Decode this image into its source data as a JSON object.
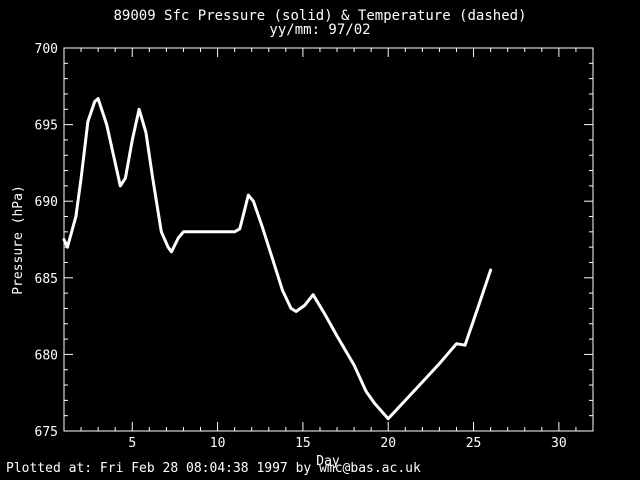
{
  "header": {
    "title_line1": "89009 Sfc Pressure (solid) & Temperature (dashed)",
    "title_line2": "yy/mm: 97/02"
  },
  "footer": {
    "text": "Plotted at: Fri Feb 28 08:04:38 1997 by wmc@bas.ac.uk"
  },
  "chart_data": {
    "type": "line",
    "title": "89009 Sfc Pressure (solid) & Temperature (dashed)",
    "subtitle": "yy/mm: 97/02",
    "xlabel": "Day",
    "ylabel": "Pressure (hPa)",
    "xlim": [
      1,
      32
    ],
    "ylim": [
      675,
      700
    ],
    "x_ticks": [
      5,
      10,
      15,
      20,
      25,
      30
    ],
    "y_ticks": [
      675,
      680,
      685,
      690,
      695,
      700
    ],
    "grid": false,
    "series": [
      {
        "name": "Sfc Pressure",
        "style": "solid",
        "color": "#ffffff",
        "x": [
          1.0,
          1.2,
          1.7,
          2.0,
          2.4,
          2.8,
          3.0,
          3.5,
          4.0,
          4.3,
          4.6,
          5.0,
          5.4,
          5.8,
          6.2,
          6.7,
          7.1,
          7.3,
          7.7,
          8.0,
          8.5,
          9.0,
          10.0,
          10.5,
          11.0,
          11.3,
          11.6,
          11.8,
          12.1,
          12.6,
          13.2,
          13.8,
          14.3,
          14.6,
          15.1,
          15.6,
          16.3,
          17.0,
          18.0,
          18.7,
          19.2,
          20.0,
          21.0,
          22.0,
          23.0,
          24.0,
          24.5,
          25.3,
          26.0
        ],
        "y": [
          687.5,
          687.0,
          689.0,
          691.5,
          695.2,
          696.5,
          696.7,
          695.0,
          692.5,
          691.0,
          691.5,
          694.0,
          696.0,
          694.5,
          691.5,
          688.0,
          687.0,
          686.7,
          687.6,
          688.0,
          688.0,
          688.0,
          688.0,
          688.0,
          688.0,
          688.2,
          689.5,
          690.4,
          690.0,
          688.4,
          686.3,
          684.2,
          683.0,
          682.8,
          683.2,
          683.9,
          682.6,
          681.2,
          679.3,
          677.6,
          676.8,
          675.8,
          677.0,
          678.2,
          679.4,
          680.7,
          680.6,
          683.2,
          685.5
        ]
      }
    ]
  }
}
